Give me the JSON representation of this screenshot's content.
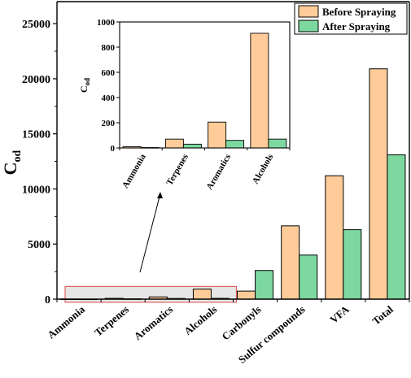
{
  "chart_data": [
    {
      "type": "bar",
      "ylabel": "C",
      "ylabel_sub": "od",
      "categories": [
        "Ammonia",
        "Terpenes",
        "Aromatics",
        "Alcohols",
        "Carbonyls",
        "Sulfur compounds",
        "VFA",
        "Total"
      ],
      "ylim": [
        0,
        27000
      ],
      "yticks": [
        0,
        5000,
        10000,
        15000,
        20000,
        25000
      ],
      "series": [
        {
          "name": "Before Spraying",
          "color": "#FFCC99",
          "values": [
            10,
            70,
            205,
            910,
            730,
            6650,
            11200,
            20900
          ]
        },
        {
          "name": "After Spraying",
          "color": "#7DD8A0",
          "values": [
            3,
            30,
            60,
            70,
            2600,
            4000,
            6300,
            13100
          ]
        }
      ],
      "legend_position": "top-right",
      "highlight_categories": [
        "Ammonia",
        "Terpenes",
        "Aromatics",
        "Alcohols"
      ],
      "highlight_color": "#E06060"
    },
    {
      "type": "bar",
      "role": "inset",
      "ylabel": "C",
      "ylabel_sub": "od",
      "categories": [
        "Ammonia",
        "Terpenes",
        "Aromatics",
        "Alcohols"
      ],
      "ylim": [
        0,
        1000
      ],
      "yticks": [
        0,
        200,
        400,
        600,
        800,
        1000
      ],
      "series": [
        {
          "name": "Before Spraying",
          "color": "#FFCC99",
          "values": [
            10,
            70,
            205,
            910
          ]
        },
        {
          "name": "After Spraying",
          "color": "#7DD8A0",
          "values": [
            3,
            30,
            60,
            70
          ]
        }
      ]
    }
  ]
}
